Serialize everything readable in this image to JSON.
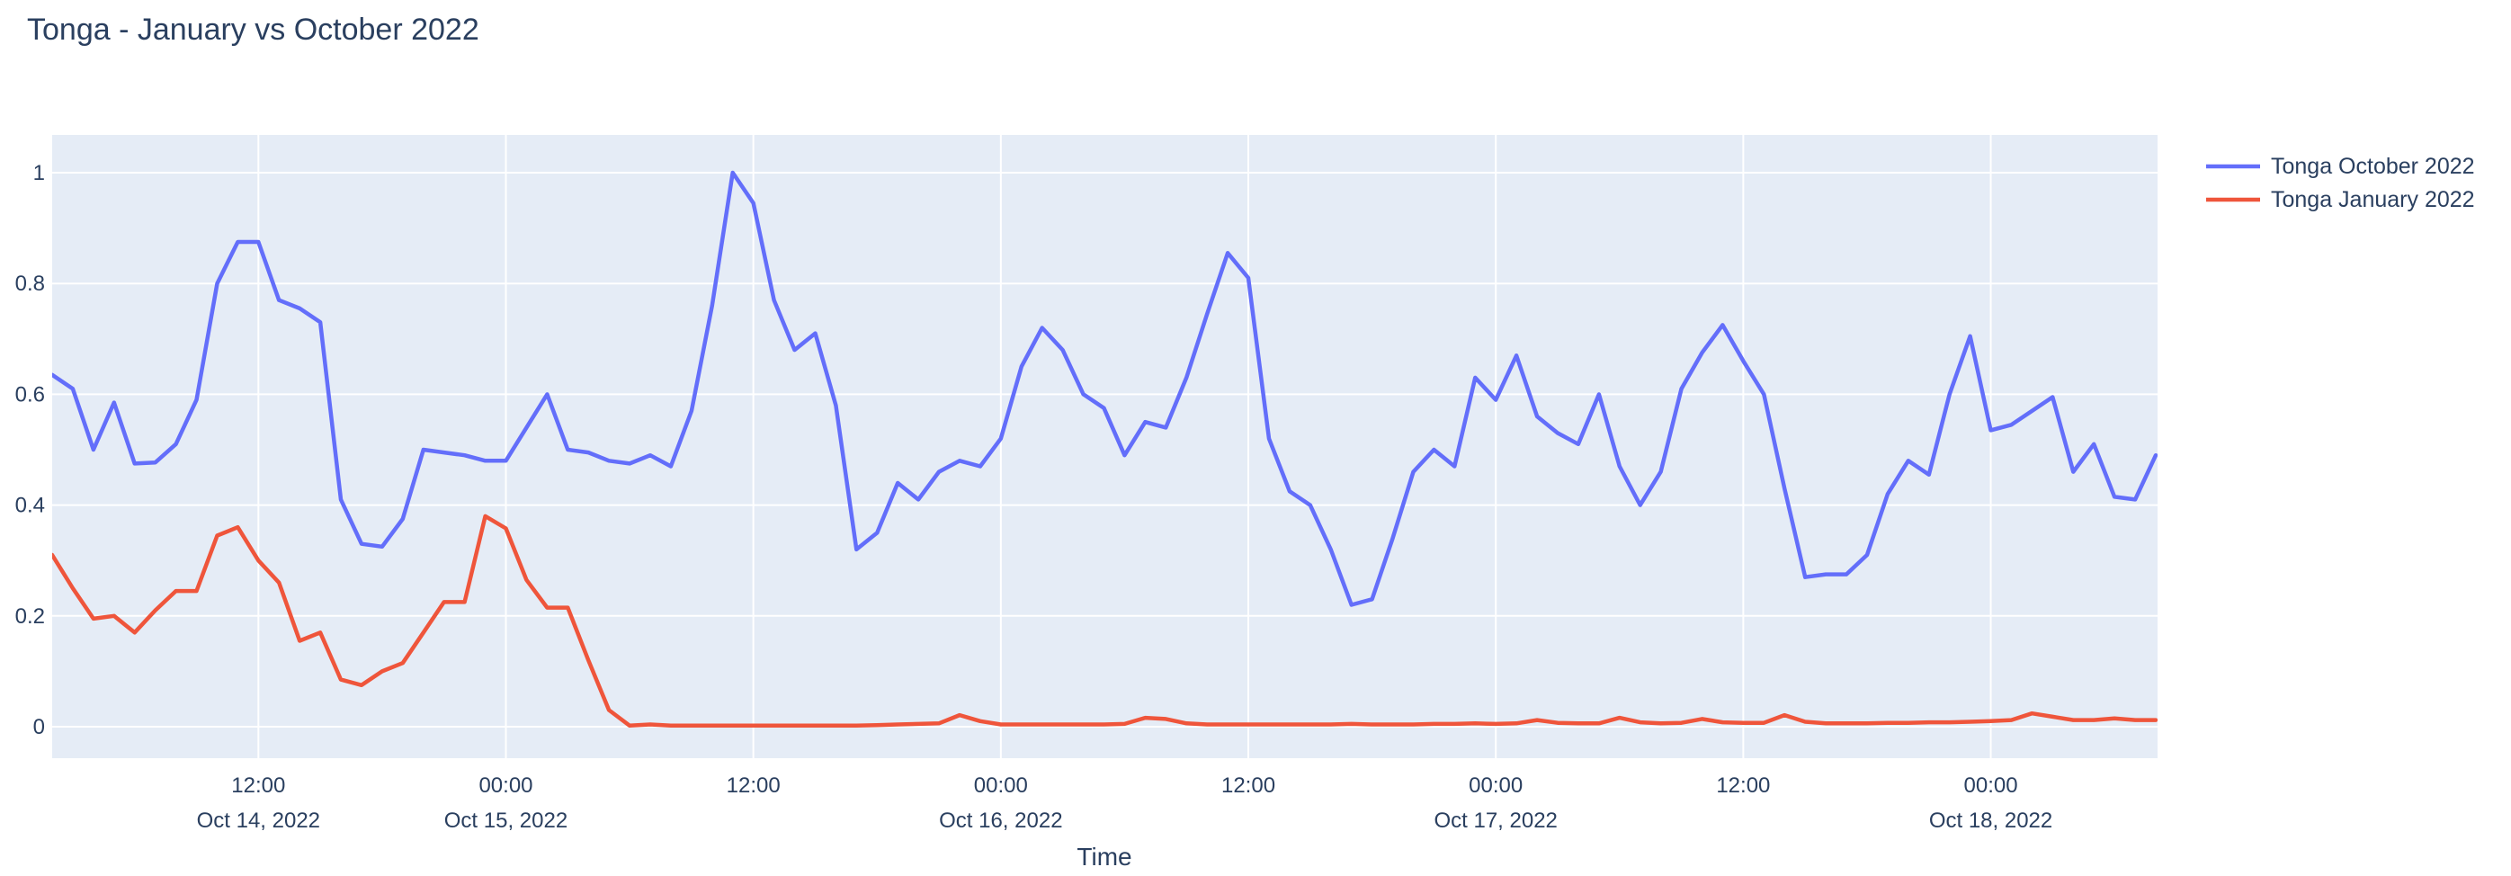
{
  "header": {
    "title": "Tonga - January vs October 2022"
  },
  "colors": {
    "accent_blue": "#636EFA",
    "accent_red": "#EF553B",
    "text": "#2a3f5f",
    "plot_bg": "#E5ECF6",
    "grid": "#FFFFFF",
    "paper_bg": "#FFFFFF"
  },
  "legend": {
    "items": [
      {
        "label": "Tonga October 2022",
        "color": "#636EFA"
      },
      {
        "label": "Tonga January 2022",
        "color": "#EF553B"
      }
    ]
  },
  "chart_data": {
    "type": "line",
    "title": "Tonga - January vs October 2022",
    "xlabel": "Time",
    "ylabel": "",
    "x_start": "2022-10-14 02:00",
    "x_step_hours": 1,
    "n_points": 103,
    "xlim_hours": [
      0,
      102.15
    ],
    "ylim": [
      -0.057,
      1.068
    ],
    "grid": "on",
    "legend_position": "top-right-outside",
    "y_ticks": [
      {
        "v": 0,
        "label": "0"
      },
      {
        "v": 0.2,
        "label": "0.2"
      },
      {
        "v": 0.4,
        "label": "0.4"
      },
      {
        "v": 0.6,
        "label": "0.6"
      },
      {
        "v": 0.8,
        "label": "0.8"
      },
      {
        "v": 1,
        "label": "1"
      }
    ],
    "x_ticks": [
      {
        "hour": 10,
        "line1": "12:00",
        "line2": "Oct 14, 2022"
      },
      {
        "hour": 22,
        "line1": "00:00",
        "line2": "Oct 15, 2022"
      },
      {
        "hour": 34,
        "line1": "12:00",
        "line2": ""
      },
      {
        "hour": 46,
        "line1": "00:00",
        "line2": "Oct 16, 2022"
      },
      {
        "hour": 58,
        "line1": "12:00",
        "line2": ""
      },
      {
        "hour": 70,
        "line1": "00:00",
        "line2": "Oct 17, 2022"
      },
      {
        "hour": 82,
        "line1": "12:00",
        "line2": ""
      },
      {
        "hour": 94,
        "line1": "00:00",
        "line2": "Oct 18, 2022"
      }
    ],
    "series": [
      {
        "name": "Tonga October 2022",
        "color": "#636EFA",
        "values": [
          0.635,
          0.61,
          0.5,
          0.585,
          0.475,
          0.477,
          0.51,
          0.59,
          0.8,
          0.875,
          0.875,
          0.77,
          0.755,
          0.73,
          0.41,
          0.33,
          0.325,
          0.375,
          0.5,
          0.495,
          0.49,
          0.48,
          0.48,
          0.54,
          0.6,
          0.5,
          0.495,
          0.48,
          0.475,
          0.49,
          0.47,
          0.57,
          0.76,
          1.0,
          0.945,
          0.77,
          0.68,
          0.71,
          0.58,
          0.32,
          0.35,
          0.44,
          0.41,
          0.46,
          0.48,
          0.47,
          0.52,
          0.65,
          0.72,
          0.68,
          0.6,
          0.575,
          0.49,
          0.55,
          0.54,
          0.63,
          0.745,
          0.855,
          0.81,
          0.52,
          0.425,
          0.4,
          0.32,
          0.22,
          0.23,
          0.34,
          0.46,
          0.5,
          0.47,
          0.63,
          0.59,
          0.67,
          0.56,
          0.53,
          0.51,
          0.6,
          0.47,
          0.4,
          0.46,
          0.61,
          0.675,
          0.725,
          0.66,
          0.6,
          0.43,
          0.27,
          0.275,
          0.275,
          0.31,
          0.42,
          0.48,
          0.455,
          0.6,
          0.705,
          0.535,
          0.545,
          0.57,
          0.595,
          0.46,
          0.51,
          0.415,
          0.41,
          0.49
        ]
      },
      {
        "name": "Tonga January 2022",
        "color": "#EF553B",
        "values": [
          0.31,
          0.25,
          0.195,
          0.2,
          0.17,
          0.21,
          0.245,
          0.245,
          0.345,
          0.36,
          0.3,
          0.26,
          0.155,
          0.17,
          0.085,
          0.075,
          0.1,
          0.115,
          0.17,
          0.225,
          0.225,
          0.38,
          0.358,
          0.265,
          0.215,
          0.215,
          0.12,
          0.03,
          0.002,
          0.004,
          0.002,
          0.002,
          0.002,
          0.002,
          0.002,
          0.002,
          0.002,
          0.002,
          0.002,
          0.002,
          0.003,
          0.004,
          0.005,
          0.006,
          0.021,
          0.01,
          0.004,
          0.004,
          0.004,
          0.004,
          0.004,
          0.004,
          0.005,
          0.016,
          0.014,
          0.006,
          0.004,
          0.004,
          0.004,
          0.004,
          0.004,
          0.004,
          0.004,
          0.005,
          0.004,
          0.004,
          0.004,
          0.005,
          0.005,
          0.006,
          0.005,
          0.006,
          0.012,
          0.007,
          0.006,
          0.006,
          0.016,
          0.008,
          0.006,
          0.007,
          0.014,
          0.008,
          0.007,
          0.007,
          0.021,
          0.009,
          0.006,
          0.006,
          0.006,
          0.007,
          0.007,
          0.008,
          0.008,
          0.009,
          0.01,
          0.012,
          0.024,
          0.018,
          0.012,
          0.012,
          0.015,
          0.012,
          0.012
        ]
      }
    ]
  },
  "axes": {
    "x_title": "Time"
  }
}
